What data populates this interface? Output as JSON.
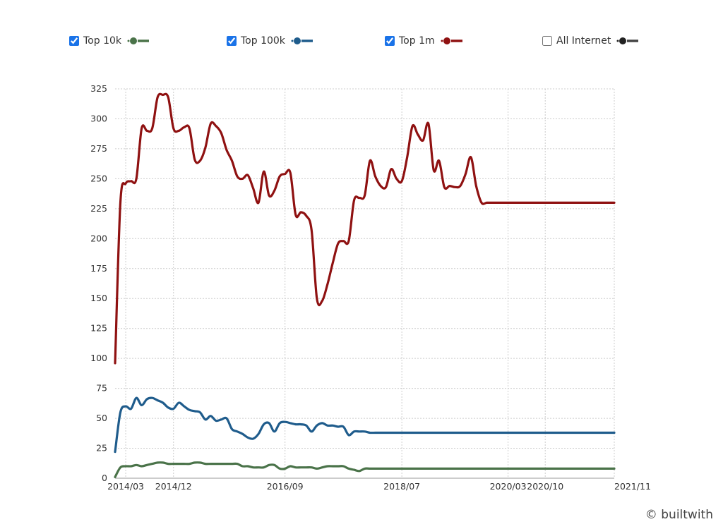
{
  "legend": [
    {
      "name": "Top 10k",
      "checked": true,
      "color": "#4a7349"
    },
    {
      "name": "Top 100k",
      "checked": true,
      "color": "#1f5c8c"
    },
    {
      "name": "Top 1m",
      "checked": true,
      "color": "#8f1111"
    },
    {
      "name": "All Internet",
      "checked": false,
      "color": "#222222"
    }
  ],
  "watermark": "© builtwith",
  "chart_data": {
    "type": "line",
    "title": "",
    "xlabel": "",
    "ylabel": "",
    "ylim": [
      0,
      325
    ],
    "yticks": [
      0,
      25,
      50,
      75,
      100,
      125,
      150,
      175,
      200,
      225,
      250,
      275,
      300,
      325
    ],
    "xlim": [
      "2014/01",
      "2021/11"
    ],
    "xticks": [
      "2014/03",
      "2014/12",
      "2016/09",
      "2018/07",
      "2020/03",
      "2020/10",
      "2021/11"
    ],
    "grid": true,
    "series": [
      {
        "name": "Top 1m",
        "color": "#8f1111",
        "x": [
          "2014/01",
          "2014/02",
          "2014/03",
          "2014/04",
          "2014/05",
          "2014/06",
          "2014/07",
          "2014/08",
          "2014/09",
          "2014/10",
          "2014/11",
          "2014/12",
          "2015/01",
          "2015/02",
          "2015/03",
          "2015/04",
          "2015/05",
          "2015/06",
          "2015/07",
          "2015/08",
          "2015/09",
          "2015/10",
          "2015/11",
          "2015/12",
          "2016/01",
          "2016/02",
          "2016/03",
          "2016/04",
          "2016/05",
          "2016/06",
          "2016/07",
          "2016/08",
          "2016/09",
          "2016/10",
          "2016/11",
          "2016/12",
          "2017/01",
          "2017/02",
          "2017/03",
          "2017/04",
          "2017/05",
          "2017/06",
          "2017/07",
          "2017/08",
          "2017/09",
          "2017/10",
          "2017/11",
          "2017/12",
          "2018/01",
          "2018/02",
          "2018/03",
          "2018/04",
          "2018/05",
          "2018/06",
          "2018/07",
          "2018/08",
          "2018/09",
          "2018/10",
          "2018/11",
          "2018/12",
          "2019/01",
          "2019/02",
          "2019/03",
          "2019/04",
          "2019/05",
          "2019/06",
          "2019/07",
          "2019/08",
          "2019/09",
          "2019/10",
          "2019/11",
          "2019/12",
          "2020/01",
          "2020/02",
          "2020/03",
          "2020/04",
          "2020/05",
          "2020/06",
          "2020/07",
          "2020/08",
          "2020/09",
          "2020/10",
          "2020/11",
          "2020/12",
          "2021/01",
          "2021/02",
          "2021/03",
          "2021/04",
          "2021/05",
          "2021/06",
          "2021/07",
          "2021/08",
          "2021/09",
          "2021/10",
          "2021/11"
        ],
        "values": [
          96,
          230,
          246,
          248,
          250,
          292,
          290,
          292,
          318,
          320,
          318,
          292,
          290,
          293,
          292,
          266,
          265,
          276,
          296,
          294,
          288,
          274,
          265,
          252,
          250,
          253,
          242,
          230,
          256,
          236,
          240,
          252,
          254,
          255,
          220,
          222,
          219,
          207,
          150,
          148,
          162,
          180,
          196,
          198,
          198,
          232,
          234,
          236,
          265,
          252,
          244,
          243,
          258,
          250,
          248,
          268,
          294,
          287,
          282,
          296,
          257,
          265,
          243,
          244,
          243,
          244,
          254,
          268,
          244,
          230,
          230,
          230,
          230,
          230,
          230,
          230,
          230,
          230,
          230,
          230,
          230,
          230,
          230,
          230,
          230,
          230,
          230,
          230,
          230,
          230,
          230,
          230,
          230,
          230,
          230
        ]
      },
      {
        "name": "Top 100k",
        "color": "#1f5c8c",
        "x": [
          "2014/01",
          "2014/02",
          "2014/03",
          "2014/04",
          "2014/05",
          "2014/06",
          "2014/07",
          "2014/08",
          "2014/09",
          "2014/10",
          "2014/11",
          "2014/12",
          "2015/01",
          "2015/02",
          "2015/03",
          "2015/04",
          "2015/05",
          "2015/06",
          "2015/07",
          "2015/08",
          "2015/09",
          "2015/10",
          "2015/11",
          "2015/12",
          "2016/01",
          "2016/02",
          "2016/03",
          "2016/04",
          "2016/05",
          "2016/06",
          "2016/07",
          "2016/08",
          "2016/09",
          "2016/10",
          "2016/11",
          "2016/12",
          "2017/01",
          "2017/02",
          "2017/03",
          "2017/04",
          "2017/05",
          "2017/06",
          "2017/07",
          "2017/08",
          "2017/09",
          "2017/10",
          "2017/11",
          "2017/12",
          "2018/01",
          "2018/02",
          "2018/03",
          "2018/04",
          "2018/05",
          "2018/06",
          "2018/07",
          "2018/08",
          "2018/09",
          "2018/10",
          "2018/11",
          "2018/12",
          "2019/01",
          "2019/02",
          "2019/03",
          "2019/04",
          "2019/05",
          "2019/06",
          "2019/07",
          "2019/08",
          "2019/09",
          "2019/10",
          "2019/11",
          "2019/12",
          "2020/01",
          "2020/02",
          "2020/03",
          "2020/04",
          "2020/05",
          "2020/06",
          "2020/07",
          "2020/08",
          "2020/09",
          "2020/10",
          "2020/11",
          "2020/12",
          "2021/01",
          "2021/02",
          "2021/03",
          "2021/04",
          "2021/05",
          "2021/06",
          "2021/07",
          "2021/08",
          "2021/09",
          "2021/10",
          "2021/11"
        ],
        "values": [
          22,
          55,
          60,
          58,
          67,
          61,
          66,
          67,
          65,
          63,
          59,
          58,
          63,
          60,
          57,
          56,
          55,
          49,
          52,
          48,
          49,
          50,
          41,
          39,
          37,
          34,
          33,
          37,
          45,
          46,
          39,
          46,
          47,
          46,
          45,
          45,
          44,
          39,
          44,
          46,
          44,
          44,
          43,
          43,
          36,
          39,
          39,
          39,
          38,
          38,
          38,
          38,
          38,
          38,
          38,
          38,
          38,
          38,
          38,
          38,
          38,
          38,
          38,
          38,
          38,
          38,
          38,
          38,
          38,
          38,
          38,
          38,
          38,
          38,
          38,
          38,
          38,
          38,
          38,
          38,
          38,
          38,
          38,
          38,
          38,
          38,
          38,
          38,
          38,
          38,
          38,
          38,
          38,
          38,
          38
        ]
      },
      {
        "name": "Top 10k",
        "color": "#4a7349",
        "x": [
          "2014/01",
          "2014/02",
          "2014/03",
          "2014/04",
          "2014/05",
          "2014/06",
          "2014/07",
          "2014/08",
          "2014/09",
          "2014/10",
          "2014/11",
          "2014/12",
          "2015/01",
          "2015/02",
          "2015/03",
          "2015/04",
          "2015/05",
          "2015/06",
          "2015/07",
          "2015/08",
          "2015/09",
          "2015/10",
          "2015/11",
          "2015/12",
          "2016/01",
          "2016/02",
          "2016/03",
          "2016/04",
          "2016/05",
          "2016/06",
          "2016/07",
          "2016/08",
          "2016/09",
          "2016/10",
          "2016/11",
          "2016/12",
          "2017/01",
          "2017/02",
          "2017/03",
          "2017/04",
          "2017/05",
          "2017/06",
          "2017/07",
          "2017/08",
          "2017/09",
          "2017/10",
          "2017/11",
          "2017/12",
          "2018/01",
          "2018/02",
          "2018/03",
          "2018/04",
          "2018/05",
          "2018/06",
          "2018/07",
          "2018/08",
          "2018/09",
          "2018/10",
          "2018/11",
          "2018/12",
          "2019/01",
          "2019/02",
          "2019/03",
          "2019/04",
          "2019/05",
          "2019/06",
          "2019/07",
          "2019/08",
          "2019/09",
          "2019/10",
          "2019/11",
          "2019/12",
          "2020/01",
          "2020/02",
          "2020/03",
          "2020/04",
          "2020/05",
          "2020/06",
          "2020/07",
          "2020/08",
          "2020/09",
          "2020/10",
          "2020/11",
          "2020/12",
          "2021/01",
          "2021/02",
          "2021/03",
          "2021/04",
          "2021/05",
          "2021/06",
          "2021/07",
          "2021/08",
          "2021/09",
          "2021/10",
          "2021/11"
        ],
        "values": [
          1,
          9,
          10,
          10,
          11,
          10,
          11,
          12,
          13,
          13,
          12,
          12,
          12,
          12,
          12,
          13,
          13,
          12,
          12,
          12,
          12,
          12,
          12,
          12,
          10,
          10,
          9,
          9,
          9,
          11,
          11,
          8,
          8,
          10,
          9,
          9,
          9,
          9,
          8,
          9,
          10,
          10,
          10,
          10,
          8,
          7,
          6,
          8,
          8,
          8,
          8,
          8,
          8,
          8,
          8,
          8,
          8,
          8,
          8,
          8,
          8,
          8,
          8,
          8,
          8,
          8,
          8,
          8,
          8,
          8,
          8,
          8,
          8,
          8,
          8,
          8,
          8,
          8,
          8,
          8,
          8,
          8,
          8,
          8,
          8,
          8,
          8,
          8,
          8,
          8,
          8,
          8,
          8,
          8,
          8
        ]
      }
    ]
  }
}
